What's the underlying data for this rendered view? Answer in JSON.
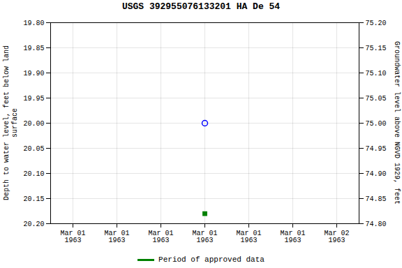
{
  "chart_data": {
    "type": "scatter",
    "title": "USGS 392955076133201 HA De  54",
    "y_label": "Depth to water level, feet below land\n surface",
    "y2_label": "Groundwater level above NGVD 1929, feet",
    "categories": [
      "Mar 01\n1963",
      "Mar 01\n1963",
      "Mar 01\n1963",
      "Mar 01\n1963",
      "Mar 01\n1963",
      "Mar 01\n1963",
      "Mar 02\n1963"
    ],
    "ylim": [
      20.2,
      19.8
    ],
    "yticks": [
      {
        "value": 19.8,
        "label": "19.80"
      },
      {
        "value": 19.85,
        "label": "19.85"
      },
      {
        "value": 19.9,
        "label": "19.90"
      },
      {
        "value": 19.95,
        "label": "19.95"
      },
      {
        "value": 20.0,
        "label": "20.00"
      },
      {
        "value": 20.05,
        "label": "20.05"
      },
      {
        "value": 20.1,
        "label": "20.10"
      },
      {
        "value": 20.15,
        "label": "20.15"
      },
      {
        "value": 20.2,
        "label": "20.20"
      }
    ],
    "y2lim": [
      74.8,
      75.2
    ],
    "y2ticks": [
      {
        "value": 75.2,
        "label": "75.20"
      },
      {
        "value": 75.15,
        "label": "75.15"
      },
      {
        "value": 75.1,
        "label": "75.10"
      },
      {
        "value": 75.05,
        "label": "75.05"
      },
      {
        "value": 75.0,
        "label": "75.00"
      },
      {
        "value": 74.95,
        "label": "74.95"
      },
      {
        "value": 74.9,
        "label": "74.90"
      },
      {
        "value": 74.85,
        "label": "74.85"
      },
      {
        "value": 74.8,
        "label": "74.80"
      }
    ],
    "grid": true,
    "legend": "bottom",
    "series": [
      {
        "color": "blue",
        "marker": "circle_open",
        "values": [
          null,
          null,
          null,
          20.0,
          null,
          null,
          null
        ]
      },
      {
        "color": "green",
        "marker": "square",
        "values": [
          null,
          null,
          null,
          20.18,
          null,
          null,
          null
        ]
      },
      {
        "name": "Period of approved data",
        "color": "green",
        "type": "line",
        "values": [
          null,
          null,
          null,
          null,
          null,
          null,
          null
        ]
      }
    ]
  }
}
